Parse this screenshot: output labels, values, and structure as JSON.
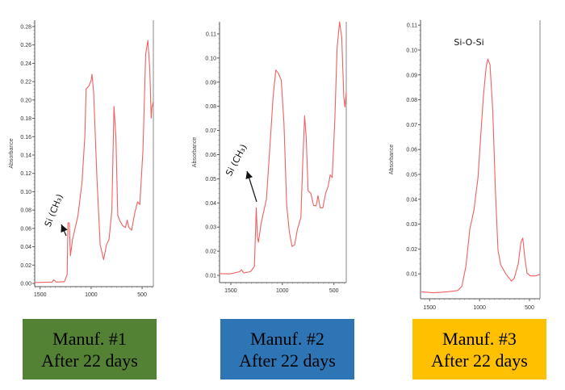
{
  "chart_data": [
    {
      "type": "line",
      "title": "",
      "xlabel": "",
      "ylabel": "Absorbance",
      "xlim": [
        1553,
        390
      ],
      "ylim": [
        -0.0035,
        0.287
      ],
      "xticks": [
        1500,
        1000,
        500
      ],
      "yticks": [
        0.0,
        0.02,
        0.04,
        0.06,
        0.08,
        0.1,
        0.12,
        0.14,
        0.16,
        0.18,
        0.2,
        0.22,
        0.24,
        0.26,
        0.28
      ],
      "ytick_decimals": 2,
      "color": "#f06060",
      "annotation": {
        "text": "Si (CH₃)",
        "points_to": [
          1227,
          0.066
        ]
      },
      "caption": {
        "line1": "Manuf. #1",
        "line2": "After 22 days",
        "color": "#548235"
      },
      "series": [
        {
          "name": "Manuf. #1",
          "x": [
            1553,
            1381,
            1367,
            1341,
            1261,
            1235,
            1227,
            1214,
            1203,
            1182,
            1129,
            1089,
            1062,
            1049,
            1023,
            1001,
            991,
            975,
            943,
            911,
            877,
            850,
            824,
            797,
            776,
            757,
            739,
            717,
            691,
            664,
            646,
            630,
            603,
            572,
            545,
            523,
            492,
            465,
            444,
            425,
            411,
            404,
            390
          ],
          "y": [
            0.001,
            0.0015,
            0.004,
            0.0015,
            0.002,
            0.01,
            0.066,
            0.066,
            0.03,
            0.048,
            0.074,
            0.11,
            0.16,
            0.212,
            0.215,
            0.221,
            0.228,
            0.207,
            0.115,
            0.042,
            0.026,
            0.042,
            0.048,
            0.08,
            0.193,
            0.16,
            0.074,
            0.068,
            0.063,
            0.061,
            0.069,
            0.061,
            0.058,
            0.077,
            0.089,
            0.086,
            0.145,
            0.25,
            0.265,
            0.233,
            0.18,
            0.192,
            0.198
          ]
        }
      ]
    },
    {
      "type": "line",
      "title": "",
      "xlabel": "",
      "ylabel": "Absorbance",
      "xlim": [
        1609,
        380
      ],
      "ylim": [
        0.007,
        0.115
      ],
      "xticks": [
        1500,
        1000,
        500
      ],
      "yticks": [
        0.01,
        0.02,
        0.03,
        0.04,
        0.05,
        0.06,
        0.07,
        0.08,
        0.09,
        0.1,
        0.11
      ],
      "ytick_decimals": 2,
      "color": "#f06060",
      "annotation": {
        "text": "Si (CH₃)",
        "points_to": [
          1253,
          0.038
        ]
      },
      "caption": {
        "line1": "Manuf. #2",
        "line2": "After 22 days",
        "color": "#2e75b6"
      },
      "series": [
        {
          "name": "Manuf. #2",
          "x": [
            1609,
            1505,
            1414,
            1396,
            1375,
            1310,
            1271,
            1253,
            1242,
            1232,
            1206,
            1154,
            1115,
            1089,
            1063,
            1036,
            1010,
            984,
            958,
            932,
            906,
            880,
            854,
            820,
            802,
            784,
            768,
            750,
            724,
            698,
            672,
            654,
            633,
            607,
            581,
            555,
            536,
            516,
            490,
            469,
            445,
            424,
            404,
            393,
            380
          ],
          "y": [
            0.0107,
            0.0106,
            0.0115,
            0.0123,
            0.011,
            0.0115,
            0.0137,
            0.038,
            0.026,
            0.0237,
            0.0315,
            0.0416,
            0.067,
            0.084,
            0.095,
            0.0935,
            0.0907,
            0.073,
            0.039,
            0.028,
            0.022,
            0.0226,
            0.029,
            0.034,
            0.057,
            0.076,
            0.067,
            0.045,
            0.044,
            0.039,
            0.0388,
            0.043,
            0.038,
            0.038,
            0.0438,
            0.047,
            0.0516,
            0.0505,
            0.075,
            0.104,
            0.115,
            0.1085,
            0.084,
            0.0797,
            0.0857
          ]
        }
      ]
    },
    {
      "type": "line",
      "title": "",
      "xlabel": "",
      "ylabel": "Absorbance",
      "xlim": [
        1591,
        395
      ],
      "ylim": [
        0.0,
        0.112
      ],
      "xticks": [
        1500,
        1000,
        500
      ],
      "yticks": [
        0.01,
        0.02,
        0.03,
        0.04,
        0.05,
        0.06,
        0.07,
        0.08,
        0.09,
        0.1,
        0.11
      ],
      "ytick_decimals": 2,
      "color": "#f06060",
      "annotation": {
        "text": "Si-O-Si",
        "points_to": null
      },
      "caption": {
        "line1": "Manuf. #3",
        "line2": "After 22 days",
        "color": "#ffc000"
      },
      "series": [
        {
          "name": "Manuf. #3",
          "x": [
            1581,
            1460,
            1325,
            1218,
            1177,
            1137,
            1097,
            1056,
            1016,
            989,
            962,
            935,
            917,
            895,
            868,
            841,
            815,
            788,
            734,
            680,
            653,
            612,
            586,
            567,
            546,
            524,
            492,
            438,
            398
          ],
          "y": [
            0.0028,
            0.0024,
            0.0028,
            0.0033,
            0.005,
            0.013,
            0.028,
            0.0357,
            0.0487,
            0.065,
            0.081,
            0.093,
            0.0964,
            0.094,
            0.0757,
            0.0433,
            0.0195,
            0.0136,
            0.0098,
            0.0071,
            0.0082,
            0.0141,
            0.0227,
            0.0244,
            0.0163,
            0.0103,
            0.0092,
            0.0092,
            0.0098
          ]
        }
      ]
    }
  ]
}
